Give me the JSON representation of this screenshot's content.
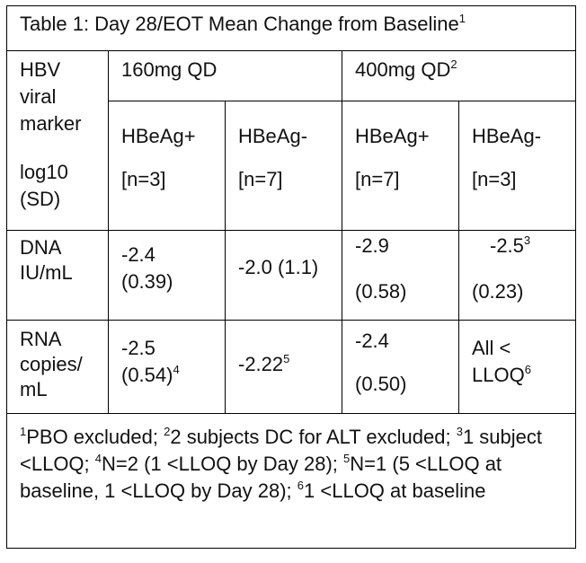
{
  "table": {
    "title": "Table 1: Day 28/EOT Mean Change from Baseline",
    "title_sup": "1",
    "marker_header": [
      "HBV",
      "viral",
      "marker",
      "log10",
      "(SD)"
    ],
    "dose_160": "160mg QD",
    "dose_400": "400mg QD",
    "dose_400_sup": "2",
    "subgroups": [
      {
        "name": "HBeAg+",
        "n": "[n=3]"
      },
      {
        "name": "HBeAg-",
        "n": "[n=7]"
      },
      {
        "name": "HBeAg+",
        "n": "[n=7]"
      },
      {
        "name": "HBeAg-",
        "n": "[n=3]"
      }
    ],
    "rows": [
      {
        "label": [
          "DNA",
          "IU/mL"
        ],
        "cells": [
          {
            "l1": "-2.4",
            "l2": "(0.39)",
            "sup": ""
          },
          {
            "l1": "-2.0 (1.1)",
            "l2": "",
            "sup": ""
          },
          {
            "l1": "-2.9",
            "l2": "(0.58)",
            "sup": ""
          },
          {
            "l1": "-2.5",
            "l2": "(0.23)",
            "sup": "3"
          }
        ]
      },
      {
        "label": [
          "RNA",
          "copies/",
          "mL"
        ],
        "cells": [
          {
            "l1": "-2.5",
            "l2": "(0.54)",
            "sup": "4"
          },
          {
            "l1": "-2.22",
            "l2": "",
            "sup": "5"
          },
          {
            "l1": "-2.4",
            "l2": "(0.50)",
            "sup": ""
          },
          {
            "l1": "All <",
            "l2": "LLOQ",
            "sup": "6"
          }
        ]
      }
    ],
    "footnotes": [
      {
        "sup": "1",
        "text": "PBO excluded; "
      },
      {
        "sup": "2",
        "text": "2 subjects DC for ALT excluded; "
      },
      {
        "sup": "3",
        "text": "1 subject <LLOQ; "
      },
      {
        "sup": "4",
        "text": "N=2 (1 <LLOQ by Day 28); "
      },
      {
        "sup": "5",
        "text": "N=1 (5 <LLOQ at baseline, 1 <LLOQ by Day 28); "
      },
      {
        "sup": "6",
        "text": "1 <LLOQ at baseline"
      }
    ]
  }
}
